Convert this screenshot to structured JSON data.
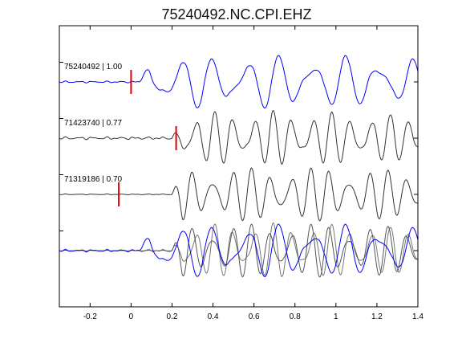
{
  "title": "75240492.NC.CPI.EHZ",
  "chart_data": {
    "type": "line",
    "title": "75240492.NC.CPI.EHZ",
    "xlabel": "",
    "ylabel": "",
    "xlim": [
      -0.35,
      1.4
    ],
    "xticks": [
      -0.2,
      0,
      0.2,
      0.4,
      0.6,
      0.8,
      1,
      1.2,
      1.4
    ],
    "xtick_labels": [
      "-0.2",
      "0",
      "0.2",
      "0.4",
      "0.6",
      "0.8",
      "1",
      "1.2",
      "1.4"
    ],
    "grid": false,
    "traces": [
      {
        "label": "75240492 | 1.00",
        "color": "#0000ff",
        "pick": 0.0,
        "onset": 0.04,
        "noise": 0.02,
        "freqs": [
          6.2,
          9.0
        ],
        "phases": [
          0.0,
          1.1
        ],
        "amp": 1.0
      },
      {
        "label": "71423740 | 0.77",
        "color": "#333333",
        "pick": 0.22,
        "onset": 0.2,
        "noise": 0.03,
        "freqs": [
          10.5,
          14.0
        ],
        "phases": [
          0.4,
          2.0
        ],
        "amp": 1.0
      },
      {
        "label": "71319186 | 0.70",
        "color": "#333333",
        "pick": -0.06,
        "onset": 0.2,
        "noise": 0.01,
        "freqs": [
          10.5,
          13.5
        ],
        "phases": [
          1.0,
          0.3
        ],
        "amp": 1.0
      }
    ],
    "overlay": {
      "series_colors": [
        "#777777",
        "#555555",
        "#0000ff"
      ]
    }
  }
}
